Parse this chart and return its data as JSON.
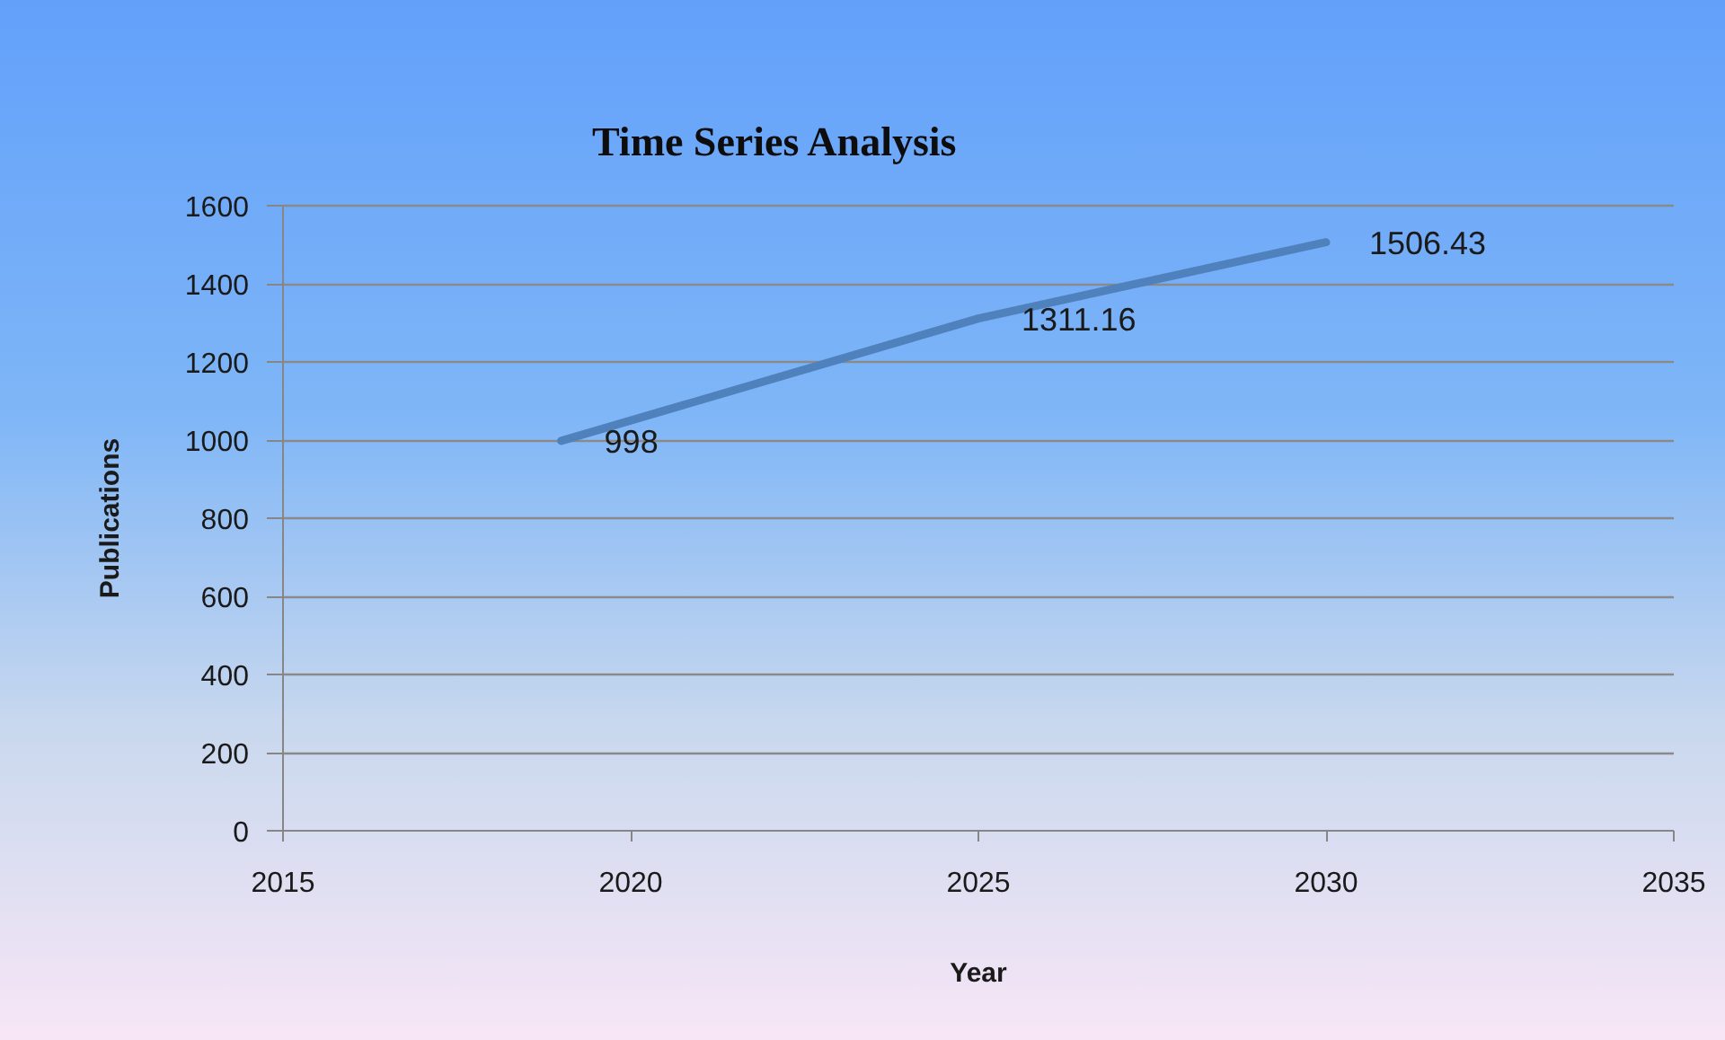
{
  "chart_data": {
    "type": "line",
    "title": "Time Series Analysis",
    "xlabel": "Year",
    "ylabel": "Publications",
    "x": [
      2019,
      2025,
      2030
    ],
    "series": [
      {
        "color": "#4f81bd",
        "values": [
          998,
          1311.16,
          1506.43
        ]
      }
    ],
    "xlim": [
      2015,
      2035
    ],
    "xticks": [
      2015,
      2020,
      2025,
      2030,
      2035
    ],
    "ylim": [
      0,
      1600
    ],
    "yticks": [
      0,
      200,
      400,
      600,
      800,
      1000,
      1200,
      1400,
      1600
    ],
    "grid": "y",
    "data_labels": true,
    "line_style": "solid"
  }
}
